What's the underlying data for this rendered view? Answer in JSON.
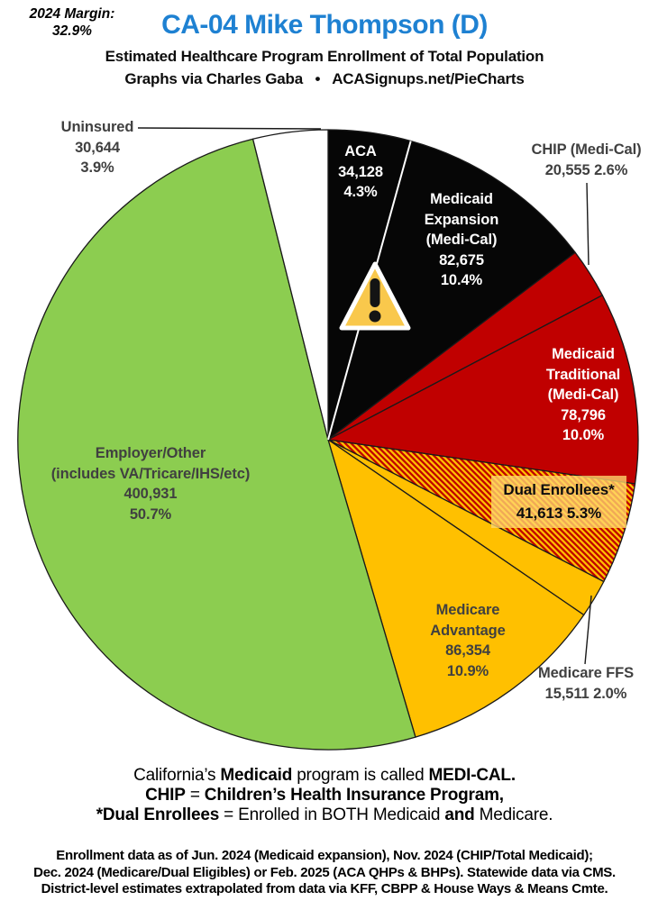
{
  "header": {
    "margin_note_line1": "2024 Margin:",
    "margin_note_line2": "32.9%",
    "title": "CA-04 Mike Thompson (D)",
    "subtitle": "Estimated Healthcare Program Enrollment of Total Population",
    "credit": "Graphs via Charles Gaba   •   ACASignups.net/PieCharts"
  },
  "colors": {
    "title_blue": "#1E81D2",
    "pie_black": "#060606",
    "pie_red": "#C00000",
    "pie_yellow": "#FFC000",
    "pie_green": "#8CCD50",
    "label_gray": "#404040",
    "warning_fill": "#F9C84C"
  },
  "icons": {
    "warning": "warning-triangle-icon"
  },
  "chart_data": {
    "type": "pie",
    "title": "Estimated Healthcare Program Enrollment of Total Population",
    "start_angle": "12 o'clock, clockwise",
    "slices": [
      {
        "id": "aca",
        "label": "ACA",
        "value": 34128,
        "pct": 4.3,
        "color": "#060606",
        "display": [
          "ACA",
          "34,128",
          "4.3%"
        ]
      },
      {
        "id": "medicaid-expansion",
        "label": "Medicaid Expansion (Medi-Cal)",
        "value": 82675,
        "pct": 10.4,
        "color": "#060606",
        "display": [
          "Medicaid",
          "Expansion",
          "(Medi-Cal)",
          "82,675",
          "10.4%"
        ]
      },
      {
        "id": "chip",
        "label": "CHIP (Medi-Cal)",
        "value": 20555,
        "pct": 2.6,
        "color": "#C00000",
        "display": [
          "CHIP (Medi-Cal)",
          "20,555 2.6%"
        ]
      },
      {
        "id": "medicaid-traditional",
        "label": "Medicaid Traditional (Medi-Cal)",
        "value": 78796,
        "pct": 10.0,
        "color": "#C00000",
        "display": [
          "Medicaid",
          "Traditional",
          "(Medi-Cal)",
          "78,796",
          "10.0%"
        ]
      },
      {
        "id": "dual-enrollees",
        "label": "Dual Enrollees*",
        "value": 41613,
        "pct": 5.3,
        "color": "#FFC000",
        "pattern": "hatch",
        "display": [
          "Dual Enrollees*",
          "41,613 5.3%"
        ]
      },
      {
        "id": "medicare-ffs",
        "label": "Medicare FFS",
        "value": 15511,
        "pct": 2.0,
        "color": "#FFC000",
        "display": [
          "Medicare FFS",
          "15,511 2.0%"
        ]
      },
      {
        "id": "medicare-advantage",
        "label": "Medicare Advantage",
        "value": 86354,
        "pct": 10.9,
        "color": "#FFC000",
        "display": [
          "Medicare",
          "Advantage",
          "86,354",
          "10.9%"
        ]
      },
      {
        "id": "employer-other",
        "label": "Employer/Other (includes VA/Tricare/IHS/etc)",
        "value": 400931,
        "pct": 50.7,
        "color": "#8CCD50",
        "display": [
          "Employer/Other",
          "(includes VA/Tricare/IHS/etc)",
          "400,931",
          "50.7%"
        ]
      },
      {
        "id": "uninsured",
        "label": "Uninsured",
        "value": 30644,
        "pct": 3.9,
        "color": "#FFFFFF",
        "display": [
          "Uninsured",
          "30,644",
          "3.9%"
        ]
      }
    ]
  },
  "notes": {
    "line1": [
      {
        "t": "California’s ",
        "b": false
      },
      {
        "t": "Medicaid",
        "b": true
      },
      {
        "t": " program is called ",
        "b": false
      },
      {
        "t": "MEDI-CAL.",
        "b": true
      }
    ],
    "line2": [
      {
        "t": "CHIP",
        "b": true
      },
      {
        "t": " = ",
        "b": false
      },
      {
        "t": "Children’s Health Insurance Program,",
        "b": true
      }
    ],
    "line3": [
      {
        "t": "*Dual Enrollees",
        "b": true
      },
      {
        "t": " = Enrolled in BOTH Medicaid ",
        "b": false
      },
      {
        "t": "and",
        "b": true
      },
      {
        "t": " Medicare.",
        "b": false
      }
    ]
  },
  "footer": {
    "lines": [
      "Enrollment data as of Jun. 2024 (Medicaid expansion), Nov. 2024 (CHIP/Total Medicaid);",
      "Dec. 2024 (Medicare/Dual Eligibles) or Feb. 2025 (ACA QHPs & BHPs). Statewide data via CMS.",
      "District-level estimates extrapolated from data via KFF, CBPP & House Ways & Means Cmte."
    ]
  }
}
